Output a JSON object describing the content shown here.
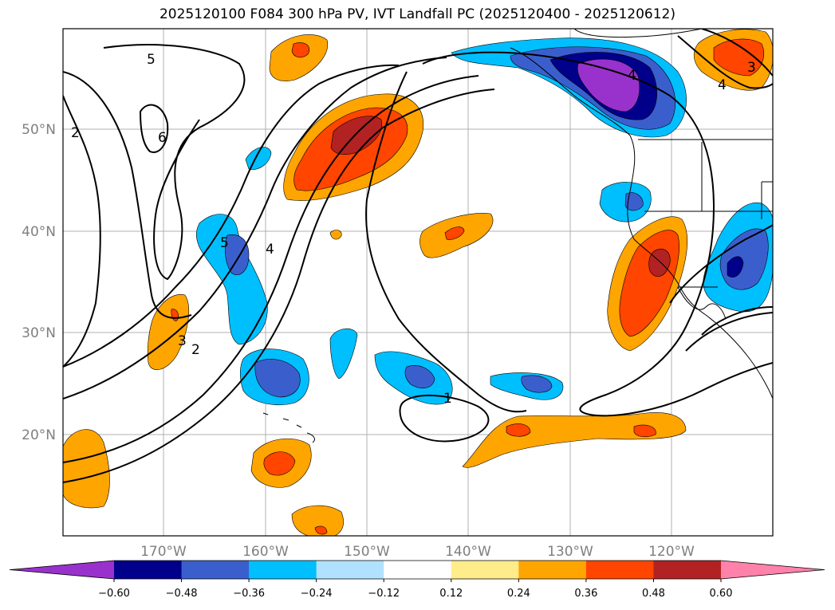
{
  "title": "2025120100 F084 300 hPa PV, IVT Landfall PC (2025120400 - 2025120612)",
  "map": {
    "lat_labels": [
      "50°N",
      "40°N",
      "30°N",
      "20°N"
    ],
    "lon_labels": [
      "170°W",
      "160°W",
      "150°W",
      "140°W",
      "130°W",
      "120°W"
    ],
    "gridlines": true
  },
  "colorbar": {
    "ticks": [
      "−0.60",
      "−0.48",
      "−0.36",
      "−0.24",
      "−0.12",
      "0.12",
      "0.24",
      "0.36",
      "0.48",
      "0.60"
    ],
    "colors": [
      "#9932cc",
      "#00008b",
      "#3a5fcd",
      "#00bfff",
      "#b0e2ff",
      "#ffffff",
      "#ffec8b",
      "#ffa500",
      "#ff4500",
      "#b22222",
      "#ff82ab"
    ]
  },
  "contour_labels": [
    "5",
    "6",
    "2",
    "5",
    "4",
    "3",
    "2",
    "1",
    "4",
    "3",
    "4"
  ],
  "colors": {
    "purple": "#9932cc",
    "navy": "#00008b",
    "royal": "#3a5fcd",
    "cyan": "#00bfff",
    "orange": "#ffa500",
    "orangered": "#ff4500",
    "firebrick": "#b22222"
  }
}
